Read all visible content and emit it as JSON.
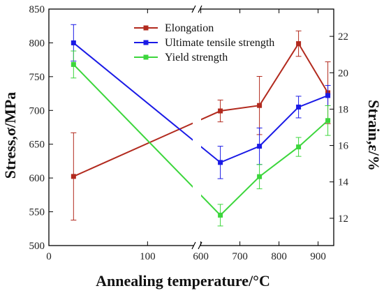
{
  "chart_data": {
    "type": "line",
    "xlabel": "Annealing temperature/°C",
    "ylabel_left": "Stress,σ/MPa",
    "ylabel_right": "Strain,ε/%",
    "x_segments": [
      {
        "range": [
          0,
          150
        ],
        "ticks": [
          0,
          100
        ],
        "tick_labels": [
          "0",
          "100"
        ]
      },
      {
        "range": [
          590,
          940
        ],
        "ticks": [
          600,
          700,
          800,
          900
        ],
        "tick_labels": [
          "600",
          "700",
          "800",
          "900"
        ]
      }
    ],
    "y_left": {
      "range": [
        500,
        850
      ],
      "ticks": [
        500,
        550,
        600,
        650,
        700,
        750,
        800,
        850
      ],
      "tick_labels": [
        "500",
        "550",
        "600",
        "650",
        "700",
        "750",
        "800",
        "850"
      ]
    },
    "y_right": {
      "range": [
        10.5,
        23.5
      ],
      "ticks": [
        12,
        14,
        16,
        18,
        20,
        22
      ],
      "tick_labels": [
        "12",
        "14",
        "16",
        "18",
        "20",
        "22"
      ]
    },
    "x": [
      25,
      650,
      750,
      850,
      925
    ],
    "series": [
      {
        "name": "Elongation",
        "axis": "right",
        "color": "#b22a1e",
        "marker": "square",
        "values": [
          14.3,
          17.9,
          18.2,
          21.6,
          18.9
        ],
        "errors": [
          2.4,
          0.6,
          1.6,
          0.7,
          1.7
        ]
      },
      {
        "name": "Ultimate tensile strength",
        "axis": "left",
        "color": "#1a1ae6",
        "marker": "square",
        "values": [
          800,
          623,
          647,
          705,
          722
        ],
        "errors": [
          27,
          24,
          27,
          16,
          15
        ]
      },
      {
        "name": "Yield  strength",
        "axis": "left",
        "color": "#3cd63c",
        "marker": "square",
        "values": [
          768,
          545,
          602,
          646,
          685
        ],
        "errors": [
          20,
          16,
          18,
          14,
          22
        ]
      }
    ],
    "legend_position": "top-center",
    "grid": false,
    "axis_break": "between 100 and 600"
  }
}
